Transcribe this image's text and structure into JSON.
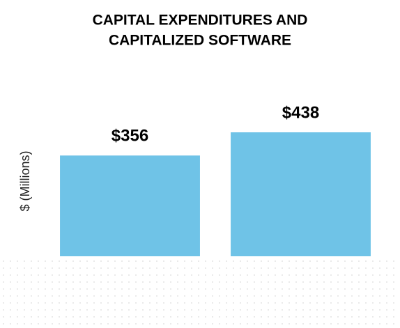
{
  "chart_data": {
    "type": "bar",
    "title": [
      "CAPITAL EXPENDITURES AND",
      "CAPITALIZED SOFTWARE"
    ],
    "y_label": "$ (Millions)",
    "categories": [
      null,
      null
    ],
    "values": [
      356,
      438
    ],
    "value_labels": [
      "$356",
      "$438"
    ],
    "color": "#6fc3e7"
  }
}
